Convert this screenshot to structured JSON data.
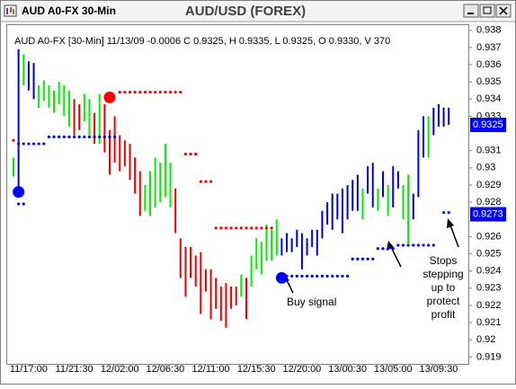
{
  "chart_data": {
    "type": "ohlc",
    "window_title": "AUD A0-FX 30-Min",
    "title": "AUD/USD (FOREX)",
    "info": "AUD A0-FX [30-Min] 11/13/09 -0.0006 C 0.9325, H 0.9335, L 0.9325, O 0.9330, V 370",
    "categories": [
      null,
      null,
      null,
      "11/17:00",
      null,
      null,
      null,
      null,
      null,
      null,
      null,
      null,
      "11/21:30",
      null,
      null,
      null,
      null,
      null,
      null,
      null,
      null,
      "12/02:00",
      null,
      null,
      null,
      null,
      null,
      null,
      null,
      null,
      "12/06:30",
      null,
      null,
      null,
      null,
      null,
      null,
      null,
      null,
      "12/11:00",
      null,
      null,
      null,
      null,
      null,
      null,
      null,
      null,
      "12/15:30",
      null,
      null,
      null,
      null,
      null,
      null,
      null,
      null,
      "12/20:00",
      null,
      null,
      null,
      null,
      null,
      null,
      null,
      null,
      "13/00:30",
      null,
      null,
      null,
      null,
      null,
      null,
      null,
      null,
      "13/05:00",
      null,
      null,
      null,
      null,
      null,
      null,
      null,
      null,
      "13/09:30",
      null,
      null
    ],
    "high": [
      0.9306,
      0.9369,
      0.9366,
      0.9362,
      0.9361,
      0.9348,
      0.9351,
      0.9348,
      0.9345,
      0.935,
      0.9348,
      0.9345,
      0.934,
      0.9337,
      0.9343,
      0.934,
      0.9332,
      0.9343,
      0.9337,
      0.9322,
      0.933,
      0.9319,
      0.9316,
      0.9314,
      0.9306,
      0.9298,
      0.929,
      0.9298,
      0.9306,
      0.9303,
      0.9314,
      0.9303,
      0.9288,
      0.9259,
      0.9254,
      0.9254,
      0.9249,
      0.9251,
      0.9241,
      0.9241,
      0.9236,
      0.9231,
      0.9233,
      0.9231,
      0.9231,
      0.9238,
      0.9236,
      0.9249,
      0.9259,
      0.9257,
      0.9267,
      0.9264,
      0.927,
      0.9259,
      0.9262,
      0.9259,
      0.9264,
      0.9262,
      0.9259,
      0.9264,
      0.9264,
      0.9275,
      0.928,
      0.9285,
      0.9285,
      0.9288,
      0.929,
      0.9293,
      0.9296,
      0.9288,
      0.9301,
      0.9303,
      0.9288,
      0.9298,
      0.929,
      0.9301,
      0.9298,
      0.929,
      0.9296,
      0.9285,
      0.9322,
      0.933,
      0.933,
      0.9335,
      0.9337,
      0.9335,
      0.9335
    ],
    "low": [
      0.9295,
      0.9285,
      0.9348,
      0.9345,
      0.934,
      0.9335,
      0.9339,
      0.9335,
      0.9332,
      0.9337,
      0.933,
      0.9324,
      0.9319,
      0.9322,
      0.9327,
      0.9319,
      0.9314,
      0.9314,
      0.9309,
      0.9296,
      0.9303,
      0.9298,
      0.9301,
      0.9293,
      0.9285,
      0.9272,
      0.9275,
      0.9272,
      0.9277,
      0.928,
      0.9283,
      0.9277,
      0.9262,
      0.9236,
      0.9225,
      0.9236,
      0.9231,
      0.9215,
      0.9228,
      0.9212,
      0.9218,
      0.9211,
      0.9207,
      0.9218,
      0.922,
      0.9225,
      0.9212,
      0.9231,
      0.9241,
      0.9238,
      0.9246,
      0.9246,
      0.9249,
      0.9249,
      0.9251,
      0.9251,
      0.9254,
      0.9241,
      0.9249,
      0.9254,
      0.9249,
      0.9259,
      0.9267,
      0.9264,
      0.927,
      0.9262,
      0.927,
      0.9275,
      0.9275,
      0.927,
      0.9285,
      0.9277,
      0.9275,
      0.9283,
      0.9272,
      0.9277,
      0.9288,
      0.927,
      0.9256,
      0.927,
      0.9283,
      0.9306,
      0.9306,
      0.9319,
      0.9324,
      0.9324,
      0.9325
    ],
    "colors": [
      "#00ee00",
      "#0000dd",
      "#00ee00",
      "#0000dd",
      "#0000dd",
      "#00ee00",
      "#00ee00",
      "#00ee00",
      "#00ee00",
      "#00ee00",
      "#00ee00",
      "#00ee00",
      "#ee0000",
      "#ee0000",
      "#00ee00",
      "#00ee00",
      "#ee0000",
      "#00ee00",
      "#ee0000",
      "#ee0000",
      "#ee0000",
      "#ee0000",
      "#ee0000",
      "#ee0000",
      "#ee0000",
      "#ee0000",
      "#00ee00",
      "#00ee00",
      "#00ee00",
      "#00ee00",
      "#00ee00",
      "#00ee00",
      "#ee0000",
      "#ee0000",
      "#ee0000",
      "#ee0000",
      "#ee0000",
      "#ee0000",
      "#ee0000",
      "#ee0000",
      "#ee0000",
      "#ee0000",
      "#ee0000",
      "#ee0000",
      "#ee0000",
      "#00ee00",
      "#ee0000",
      "#00ee00",
      "#00ee00",
      "#00ee00",
      "#00ee00",
      "#00ee00",
      "#00ee00",
      "#0000dd",
      "#0000dd",
      "#0000dd",
      "#0000dd",
      "#0000dd",
      "#0000dd",
      "#0000dd",
      "#0000dd",
      "#0000dd",
      "#0000dd",
      "#0000dd",
      "#0000dd",
      "#0000dd",
      "#0000dd",
      "#0000dd",
      "#0000dd",
      "#00ee00",
      "#0000dd",
      "#0000dd",
      "#00ee00",
      "#0000dd",
      "#00ee00",
      "#0000dd",
      "#0000dd",
      "#00ee00",
      "#00ee00",
      "#0000dd",
      "#0000dd",
      "#0000dd",
      "#00ee00",
      "#0000dd",
      "#0000dd",
      "#0000dd",
      "#0000dd"
    ],
    "stops": [
      {
        "color": "#ff0000",
        "values": [
          0.9316,
          null,
          null,
          null,
          null,
          null,
          null,
          null,
          null,
          null,
          null,
          null,
          null,
          null,
          null,
          null,
          null,
          null,
          null,
          null,
          null,
          0.9344,
          0.9344,
          0.9344,
          0.9344,
          0.9344,
          0.9344,
          0.9344,
          0.9344,
          0.9344,
          0.9344,
          0.9344,
          0.9344,
          0.9344,
          0.9308,
          0.9308,
          0.9308,
          0.9292,
          0.9292,
          0.9292,
          0.9265,
          0.9265,
          0.9265,
          0.9265,
          0.9265,
          0.9265,
          0.9265,
          0.9265,
          0.9265,
          0.9265,
          0.9265,
          0.9265,
          null,
          null,
          null,
          null,
          null,
          null,
          null,
          null,
          null,
          null,
          null,
          null,
          null,
          null,
          null,
          null,
          null,
          null,
          null,
          null,
          null,
          null,
          null,
          null,
          null,
          null,
          null,
          null,
          null,
          null,
          null,
          null,
          null,
          null,
          null
        ]
      },
      {
        "color": "#0000ff",
        "values": [
          null,
          0.9314,
          0.9314,
          0.9314,
          0.9314,
          0.9314,
          0.9314,
          0.9318,
          0.9318,
          0.9318,
          0.9318,
          0.9318,
          0.9318,
          0.9318,
          0.9318,
          0.9318,
          0.9318,
          0.9318,
          0.9318,
          0.9318,
          0.9318,
          null,
          null,
          null,
          null,
          null,
          null,
          null,
          null,
          null,
          null,
          null,
          null,
          null,
          null,
          null,
          null,
          null,
          null,
          null,
          null,
          null,
          null,
          null,
          null,
          null,
          null,
          null,
          null,
          null,
          null,
          null,
          null,
          null,
          0.9237,
          0.9237,
          0.9237,
          0.9237,
          0.9237,
          0.9237,
          0.9237,
          0.9237,
          0.9237,
          0.9237,
          0.9237,
          0.9237,
          0.9237,
          0.9247,
          0.9247,
          0.9247,
          0.9247,
          0.9247,
          0.9253,
          0.9253,
          0.9253,
          0.9253,
          0.9255,
          0.9255,
          0.9255,
          0.9255,
          0.9255,
          0.9255,
          0.9255,
          0.9255,
          null,
          0.9274,
          0.9274
        ]
      },
      {
        "color": "#0000ff",
        "values": [
          null,
          0.9279,
          0.9279,
          null,
          null,
          null,
          null,
          null,
          null,
          null,
          null,
          null,
          null,
          null,
          null,
          null,
          null,
          null,
          null,
          null,
          null,
          null,
          null,
          null,
          null,
          null,
          null,
          null,
          null,
          null,
          null,
          null,
          null,
          null,
          null,
          null,
          null,
          null,
          null,
          null,
          null,
          null,
          null,
          null,
          null,
          null,
          null,
          null,
          null,
          null,
          null,
          null,
          null,
          null,
          null,
          null,
          null,
          null,
          null,
          null,
          null,
          null,
          null,
          null,
          null,
          null,
          null,
          null,
          null,
          null,
          null,
          null,
          null,
          null,
          null,
          null,
          null,
          null,
          null,
          null,
          null,
          null,
          null,
          null,
          null,
          null,
          null
        ]
      }
    ],
    "signals": [
      {
        "color": "#ff0000",
        "values": [
          null,
          null,
          null,
          null,
          null,
          null,
          null,
          null,
          null,
          null,
          null,
          null,
          null,
          null,
          null,
          null,
          null,
          null,
          null,
          0.9341,
          null,
          null,
          null,
          null,
          null,
          null,
          null,
          null,
          null,
          null,
          null,
          null,
          null,
          null,
          null,
          null,
          null,
          null,
          null,
          null,
          null,
          null,
          null,
          null,
          null,
          null,
          null,
          null,
          null,
          null,
          null,
          null,
          null,
          null,
          null,
          null,
          null,
          null,
          null,
          null,
          null,
          null,
          null,
          null,
          null,
          null,
          null,
          null,
          null,
          null,
          null,
          null,
          null,
          null,
          null,
          null,
          null,
          null,
          null,
          null,
          null,
          null,
          null,
          null,
          null,
          null,
          null
        ]
      },
      {
        "color": "#0000ff",
        "values": [
          null,
          0.9286,
          null,
          null,
          null,
          null,
          null,
          null,
          null,
          null,
          null,
          null,
          null,
          null,
          null,
          null,
          null,
          null,
          null,
          null,
          null,
          null,
          null,
          null,
          null,
          null,
          null,
          null,
          null,
          null,
          null,
          null,
          null,
          null,
          null,
          null,
          null,
          null,
          null,
          null,
          null,
          null,
          null,
          null,
          null,
          null,
          null,
          null,
          null,
          null,
          null,
          null,
          null,
          0.9236,
          null,
          null,
          null,
          null,
          null,
          null,
          null,
          null,
          null,
          null,
          null,
          null,
          null,
          null,
          null,
          null,
          null,
          null,
          null,
          null,
          null,
          null,
          null,
          null,
          null,
          null,
          null,
          null,
          null,
          null,
          null,
          null,
          null
        ]
      }
    ],
    "last_prices": [
      0.9325,
      0.9273
    ],
    "last_price_color": "#0000ff",
    "ylim": [
      0.9186,
      0.9383
    ],
    "yticks": [
      0.938,
      0.937,
      0.936,
      0.935,
      0.934,
      0.933,
      0.931,
      0.93,
      0.929,
      0.928,
      0.926,
      0.925,
      0.924,
      0.923,
      0.922,
      0.921,
      0.92,
      0.919
    ],
    "buy_label": "Buy signal",
    "stops_label": [
      "Stops",
      "stepping",
      "up to",
      "protect",
      "profit"
    ]
  }
}
